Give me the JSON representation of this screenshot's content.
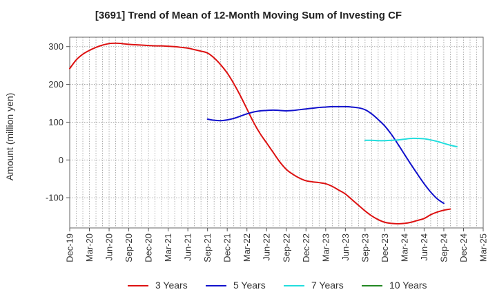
{
  "chart_data": {
    "type": "line",
    "title": "[3691]  Trend of Mean of 12-Month Moving Sum of Investing CF",
    "xlabel": "",
    "ylabel": "Amount (million yen)",
    "ylim": [
      -180,
      325
    ],
    "y_ticks": [
      300,
      200,
      100,
      0,
      -100
    ],
    "y_tick_labels": [
      "300",
      "200",
      "100",
      "0",
      "-100"
    ],
    "x_categories": [
      "Dec-19",
      "Mar-20",
      "Jun-20",
      "Sep-20",
      "Dec-20",
      "Mar-21",
      "Jun-21",
      "Sep-21",
      "Dec-21",
      "Mar-22",
      "Jun-22",
      "Sep-22",
      "Dec-22",
      "Mar-23",
      "Jun-23",
      "Sep-23",
      "Dec-23",
      "Mar-24",
      "Jun-24",
      "Sep-24",
      "Dec-24",
      "Mar-25"
    ],
    "grid": true,
    "legend_position": "bottom",
    "series": [
      {
        "name": "3 Years",
        "color": "#dd1111",
        "points": [
          [
            "Dec-19",
            242
          ],
          [
            "Jan-20",
            265
          ],
          [
            "Feb-20",
            280
          ],
          [
            "Mar-20",
            290
          ],
          [
            "Apr-20",
            298
          ],
          [
            "May-20",
            304
          ],
          [
            "Jun-20",
            308
          ],
          [
            "Jul-20",
            309
          ],
          [
            "Aug-20",
            308
          ],
          [
            "Sep-20",
            306
          ],
          [
            "Oct-20",
            305
          ],
          [
            "Nov-20",
            304
          ],
          [
            "Dec-20",
            303
          ],
          [
            "Jan-21",
            302
          ],
          [
            "Feb-21",
            302
          ],
          [
            "Mar-21",
            301
          ],
          [
            "Apr-21",
            300
          ],
          [
            "May-21",
            298
          ],
          [
            "Jun-21",
            296
          ],
          [
            "Jul-21",
            292
          ],
          [
            "Aug-21",
            288
          ],
          [
            "Sep-21",
            283
          ],
          [
            "Oct-21",
            270
          ],
          [
            "Nov-21",
            252
          ],
          [
            "Dec-21",
            230
          ],
          [
            "Jan-22",
            202
          ],
          [
            "Feb-22",
            170
          ],
          [
            "Mar-22",
            135
          ],
          [
            "Apr-22",
            100
          ],
          [
            "May-22",
            70
          ],
          [
            "Jun-22",
            45
          ],
          [
            "Jul-22",
            20
          ],
          [
            "Aug-22",
            -5
          ],
          [
            "Sep-22",
            -25
          ],
          [
            "Oct-22",
            -38
          ],
          [
            "Nov-22",
            -48
          ],
          [
            "Dec-22",
            -55
          ],
          [
            "Jan-23",
            -58
          ],
          [
            "Feb-23",
            -60
          ],
          [
            "Mar-23",
            -63
          ],
          [
            "Apr-23",
            -70
          ],
          [
            "May-23",
            -80
          ],
          [
            "Jun-23",
            -90
          ],
          [
            "Jul-23",
            -105
          ],
          [
            "Aug-23",
            -120
          ],
          [
            "Sep-23",
            -135
          ],
          [
            "Oct-23",
            -148
          ],
          [
            "Nov-23",
            -158
          ],
          [
            "Dec-23",
            -165
          ],
          [
            "Jan-24",
            -168
          ],
          [
            "Feb-24",
            -169
          ],
          [
            "Mar-24",
            -168
          ],
          [
            "Apr-24",
            -165
          ],
          [
            "May-24",
            -160
          ],
          [
            "Jun-24",
            -155
          ],
          [
            "Jul-24",
            -145
          ],
          [
            "Aug-24",
            -138
          ],
          [
            "Sep-24",
            -133
          ],
          [
            "Oct-24",
            -130
          ]
        ]
      },
      {
        "name": "5 Years",
        "color": "#1111cc",
        "points": [
          [
            "Sep-21",
            108
          ],
          [
            "Oct-21",
            105
          ],
          [
            "Nov-21",
            104
          ],
          [
            "Dec-21",
            106
          ],
          [
            "Jan-22",
            110
          ],
          [
            "Feb-22",
            116
          ],
          [
            "Mar-22",
            122
          ],
          [
            "Apr-22",
            127
          ],
          [
            "May-22",
            130
          ],
          [
            "Jun-22",
            131
          ],
          [
            "Jul-22",
            132
          ],
          [
            "Aug-22",
            131
          ],
          [
            "Sep-22",
            130
          ],
          [
            "Oct-22",
            131
          ],
          [
            "Nov-22",
            133
          ],
          [
            "Dec-22",
            135
          ],
          [
            "Jan-23",
            137
          ],
          [
            "Feb-23",
            139
          ],
          [
            "Mar-23",
            140
          ],
          [
            "Apr-23",
            141
          ],
          [
            "May-23",
            141
          ],
          [
            "Jun-23",
            141
          ],
          [
            "Jul-23",
            140
          ],
          [
            "Aug-23",
            138
          ],
          [
            "Sep-23",
            133
          ],
          [
            "Oct-23",
            122
          ],
          [
            "Nov-23",
            107
          ],
          [
            "Dec-23",
            90
          ],
          [
            "Jan-24",
            68
          ],
          [
            "Feb-24",
            42
          ],
          [
            "Mar-24",
            15
          ],
          [
            "Apr-24",
            -12
          ],
          [
            "May-24",
            -38
          ],
          [
            "Jun-24",
            -63
          ],
          [
            "Jul-24",
            -85
          ],
          [
            "Aug-24",
            -103
          ],
          [
            "Sep-24",
            -115
          ]
        ]
      },
      {
        "name": "7 Years",
        "color": "#22dddd",
        "points": [
          [
            "Sep-23",
            52
          ],
          [
            "Oct-23",
            52
          ],
          [
            "Nov-23",
            51
          ],
          [
            "Dec-23",
            51
          ],
          [
            "Jan-24",
            52
          ],
          [
            "Feb-24",
            53
          ],
          [
            "Mar-24",
            55
          ],
          [
            "Apr-24",
            57
          ],
          [
            "May-24",
            57
          ],
          [
            "Jun-24",
            56
          ],
          [
            "Jul-24",
            53
          ],
          [
            "Aug-24",
            49
          ],
          [
            "Sep-24",
            44
          ],
          [
            "Oct-24",
            39
          ],
          [
            "Nov-24",
            35
          ]
        ]
      },
      {
        "name": "10 Years",
        "color": "#228822",
        "points": []
      }
    ]
  }
}
